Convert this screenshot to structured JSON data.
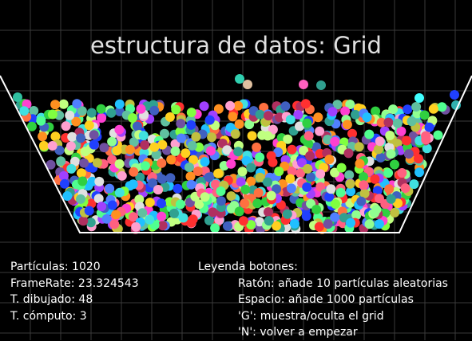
{
  "title": "estructura de datos: Grid",
  "stats": {
    "particles_label": "Partículas:",
    "particles": "1020",
    "framerate_label": "FrameRate:",
    "framerate": "23.324543",
    "draw_time_label": "T. dibujado:",
    "draw_time": "48",
    "compute_time_label": "T. cómputo:",
    "compute_time": "3"
  },
  "legend": {
    "heading": "Leyenda botones:",
    "items": [
      "Ratón: añade 10 partículas aleatorias",
      "Espacio: añade 1000 partículas",
      "'G': muestra/oculta el grid",
      "'N': volver a empezar"
    ]
  },
  "colors": {
    "background": "#000000",
    "grid": "#3a3a3a",
    "container": "#ffffff",
    "title": "#e0e0e0"
  }
}
